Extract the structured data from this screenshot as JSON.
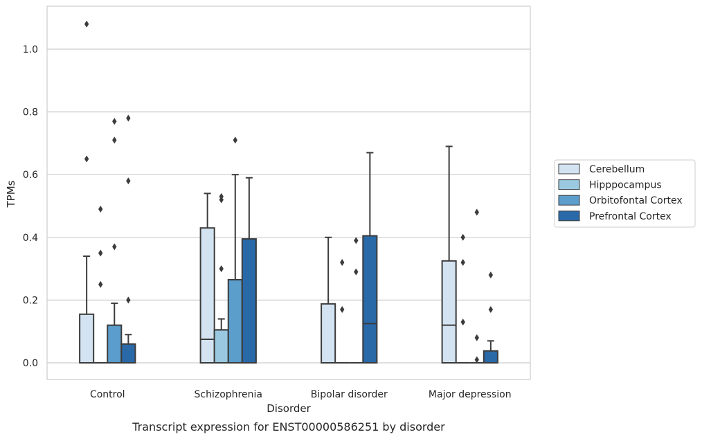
{
  "chart_data": {
    "type": "box",
    "caption": "Transcript expression for ENST00000586251 by disorder",
    "xlabel": "Disorder",
    "ylabel": "TPMs",
    "ylim": [
      -0.05,
      1.14
    ],
    "yticks": [
      0.0,
      0.2,
      0.4,
      0.6,
      0.8,
      1.0
    ],
    "ytick_labels": [
      "0.0",
      "0.2",
      "0.4",
      "0.6",
      "0.8",
      "1.0"
    ],
    "grid": "horizontal",
    "legend_position": "right",
    "categories": [
      "Control",
      "Schizophrenia",
      "Bipolar disorder",
      "Major depression"
    ],
    "series": [
      {
        "name": "Cerebellum",
        "color": "#d3e3f1",
        "boxes": [
          {
            "q1": 0.0,
            "median": 0.0,
            "q3": 0.155,
            "whisker_low": 0.0,
            "whisker_high": 0.34,
            "outliers": [
              0.65,
              1.08
            ]
          },
          {
            "q1": 0.0,
            "median": 0.075,
            "q3": 0.43,
            "whisker_low": 0.0,
            "whisker_high": 0.54,
            "outliers": []
          },
          {
            "q1": 0.0,
            "median": 0.0,
            "q3": 0.188,
            "whisker_low": 0.0,
            "whisker_high": 0.4,
            "outliers": []
          },
          {
            "q1": 0.0,
            "median": 0.12,
            "q3": 0.325,
            "whisker_low": 0.0,
            "whisker_high": 0.69,
            "outliers": []
          }
        ]
      },
      {
        "name": "Hipppocampus",
        "color": "#9ac8e0",
        "boxes": [
          {
            "q1": 0.0,
            "median": 0.0,
            "q3": 0.0,
            "whisker_low": 0.0,
            "whisker_high": 0.0,
            "outliers": [
              0.25,
              0.35,
              0.49
            ]
          },
          {
            "q1": 0.0,
            "median": 0.105,
            "q3": 0.105,
            "whisker_low": 0.0,
            "whisker_high": 0.14,
            "outliers": [
              0.3,
              0.52,
              0.53
            ]
          },
          {
            "q1": 0.0,
            "median": 0.0,
            "q3": 0.0,
            "whisker_low": 0.0,
            "whisker_high": 0.0,
            "outliers": [
              0.17,
              0.32
            ]
          },
          {
            "q1": 0.0,
            "median": 0.0,
            "q3": 0.0,
            "whisker_low": 0.0,
            "whisker_high": 0.0,
            "outliers": [
              0.13,
              0.32,
              0.4
            ]
          }
        ]
      },
      {
        "name": "Orbitofontal Cortex",
        "color": "#5b9dcb",
        "boxes": [
          {
            "q1": 0.0,
            "median": 0.0,
            "q3": 0.12,
            "whisker_low": 0.0,
            "whisker_high": 0.19,
            "outliers": [
              0.37,
              0.71,
              0.77
            ]
          },
          {
            "q1": 0.0,
            "median": 0.0,
            "q3": 0.265,
            "whisker_low": 0.0,
            "whisker_high": 0.6,
            "outliers": [
              0.71
            ]
          },
          {
            "q1": 0.0,
            "median": 0.0,
            "q3": 0.0,
            "whisker_low": 0.0,
            "whisker_high": 0.0,
            "outliers": [
              0.29,
              0.39
            ]
          },
          {
            "q1": 0.0,
            "median": 0.0,
            "q3": 0.0,
            "whisker_low": 0.0,
            "whisker_high": 0.0,
            "outliers": [
              0.01,
              0.08,
              0.48
            ]
          }
        ]
      },
      {
        "name": "Prefrontal Cortex",
        "color": "#2a69a8",
        "boxes": [
          {
            "q1": 0.0,
            "median": 0.0,
            "q3": 0.06,
            "whisker_low": 0.0,
            "whisker_high": 0.09,
            "outliers": [
              0.2,
              0.58,
              0.78
            ]
          },
          {
            "q1": 0.0,
            "median": 0.0,
            "q3": 0.395,
            "whisker_low": 0.0,
            "whisker_high": 0.59,
            "outliers": []
          },
          {
            "q1": 0.0,
            "median": 0.125,
            "q3": 0.405,
            "whisker_low": 0.0,
            "whisker_high": 0.67,
            "outliers": []
          },
          {
            "q1": 0.0,
            "median": 0.0,
            "q3": 0.038,
            "whisker_low": 0.0,
            "whisker_high": 0.07,
            "outliers": [
              0.17,
              0.28
            ]
          }
        ]
      }
    ]
  }
}
